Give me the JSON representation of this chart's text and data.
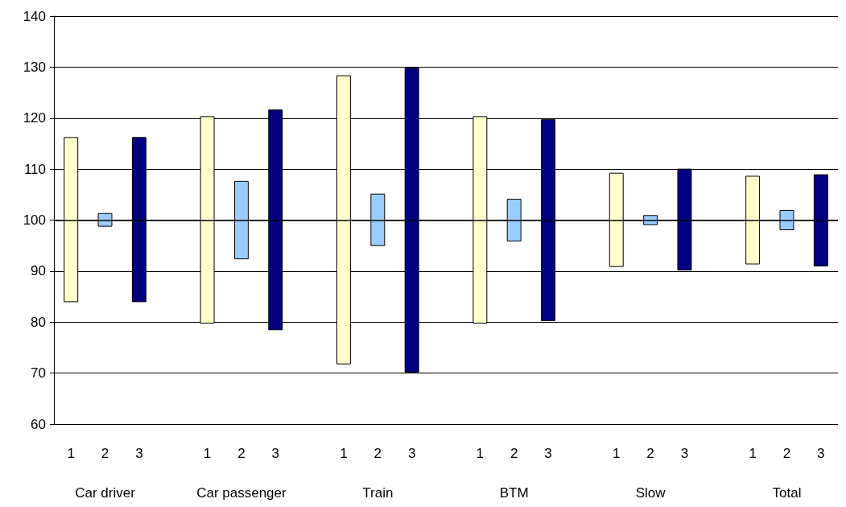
{
  "chart_data": {
    "type": "bar",
    "categories": [
      "1",
      "2",
      "3",
      null,
      "1",
      "2",
      "3",
      null,
      "1",
      "2",
      "3",
      null,
      "1",
      "2",
      "3",
      null,
      "1",
      "2",
      "3",
      null,
      "1",
      "2",
      "3"
    ],
    "base": [
      84,
      98.8,
      84,
      null,
      79.8,
      92.4,
      78.5,
      null,
      71.8,
      95,
      70.2,
      null,
      79.8,
      95.9,
      80.3,
      null,
      90.9,
      99.1,
      90.2,
      null,
      91.4,
      98.1,
      91
    ],
    "values": [
      32.2,
      2.5,
      32.2,
      null,
      40.5,
      15.2,
      43.1,
      null,
      56.5,
      10.1,
      59.6,
      null,
      40.5,
      8.2,
      39.4,
      null,
      18.3,
      1.8,
      19.8,
      null,
      17.2,
      3.8,
      17.9
    ],
    "colors": [
      "#ffffcc",
      "#99ccff",
      "#000080",
      null,
      "#ffffcc",
      "#99ccff",
      "#000080",
      null,
      "#ffffcc",
      "#99ccff",
      "#000080",
      null,
      "#ffffcc",
      "#99ccff",
      "#000080",
      null,
      "#ffffcc",
      "#99ccff",
      "#000080",
      null,
      "#ffffcc",
      "#99ccff",
      "#000080"
    ],
    "ylim": [
      60,
      140
    ],
    "yticks": [
      60,
      70,
      80,
      90,
      100,
      110,
      120,
      130,
      140
    ],
    "grid": "y",
    "ref_lines": [
      {
        "axis": "y",
        "value": 100,
        "color": "#000000"
      }
    ],
    "annotations": [
      "Car driver",
      "Car passenger",
      "Train",
      "BTM",
      "Slow",
      "Total"
    ]
  }
}
